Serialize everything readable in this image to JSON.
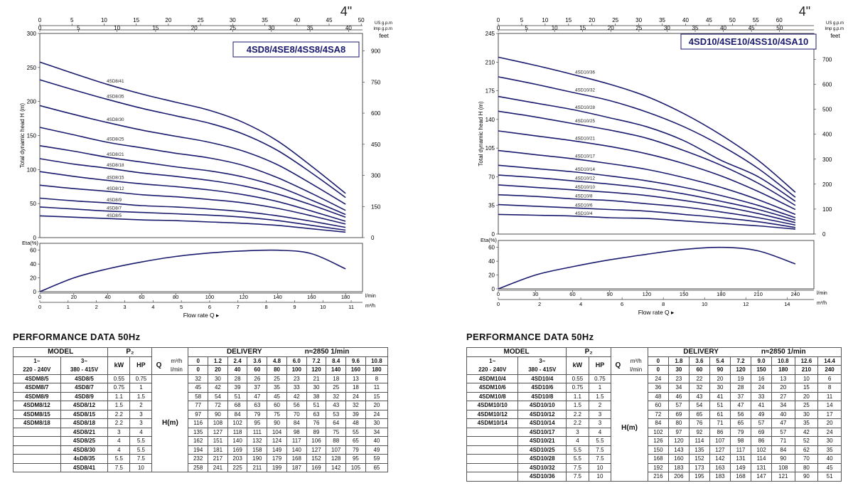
{
  "charts": [
    {
      "title": "4SD8/4SE8/4SS8/4SA8",
      "size_label": "4\"",
      "top_axes": {
        "us_label": "US g.p.m",
        "imp_label": "Imp g.p.m",
        "us_ticks": [
          "0",
          "5",
          "10",
          "15",
          "20",
          "25",
          "30",
          "35",
          "40",
          "45",
          "50"
        ],
        "imp_ticks": [
          "0",
          "5",
          "10",
          "15",
          "20",
          "25",
          "30",
          "35",
          "40"
        ]
      },
      "h_ylabel": "Total dynamic head H (m)",
      "feet_label": "feet",
      "feet_ticks": [
        "0",
        "150",
        "300",
        "450",
        "600",
        "750",
        "900"
      ],
      "h_ticks": [
        "0",
        "50",
        "100",
        "150",
        "200",
        "250",
        "300"
      ],
      "eta_label": "Eta(%)",
      "eta_ticks": [
        "0",
        "20",
        "40",
        "60"
      ],
      "lmin_ticks": [
        "0",
        "20",
        "40",
        "60",
        "80",
        "100",
        "120",
        "140",
        "160",
        "180"
      ],
      "lmin_unit": "l/min",
      "m3h_ticks": [
        "0",
        "1",
        "2",
        "3",
        "4",
        "5",
        "6",
        "7",
        "8",
        "9",
        "10",
        "11"
      ],
      "m3h_unit": "m³/h",
      "xlabel": "Flow rate Q"
    },
    {
      "title": "4SD10/4SE10/4SS10/4SA10",
      "size_label": "4\"",
      "top_axes": {
        "us_label": "US g.p.m",
        "imp_label": "Imp g.p.m",
        "us_ticks": [
          "0",
          "5",
          "10",
          "15",
          "20",
          "25",
          "30",
          "35",
          "40",
          "45",
          "50",
          "55",
          "60"
        ],
        "imp_ticks": [
          "0",
          "5",
          "10",
          "15",
          "20",
          "25",
          "30",
          "35",
          "40",
          "45",
          "50"
        ]
      },
      "h_ylabel": "Total dynamic head H (m)",
      "feet_label": "feet",
      "feet_ticks": [
        "0",
        "100",
        "200",
        "300",
        "400",
        "500",
        "600",
        "700"
      ],
      "h_ticks": [
        "0",
        "35",
        "70",
        "105",
        "140",
        "175",
        "210",
        "245"
      ],
      "eta_label": "Eta(%)",
      "eta_ticks": [
        "0",
        "20",
        "40",
        "60"
      ],
      "lmin_ticks": [
        "0",
        "30",
        "60",
        "90",
        "120",
        "150",
        "180",
        "210",
        "240"
      ],
      "lmin_unit": "l/min",
      "m3h_ticks": [
        "0",
        "2",
        "4",
        "6",
        "8",
        "10",
        "12",
        "14"
      ],
      "m3h_unit": "m³/h",
      "xlabel": "Flow rate Q"
    }
  ],
  "chart_data": [
    {
      "type": "line",
      "title": "4SD8/4SE8/4SS8/4SA8",
      "x_unit": "l/min",
      "xlim": [
        0,
        190
      ],
      "ylim": [
        0,
        300
      ],
      "ylabel": "Total dynamic head H (m)",
      "x": [
        0,
        20,
        40,
        60,
        80,
        100,
        120,
        140,
        160,
        180
      ],
      "series": [
        {
          "name": "4SD8/5",
          "values": [
            32,
            30,
            28,
            26,
            25,
            23,
            21,
            18,
            13,
            8
          ]
        },
        {
          "name": "4SD8/7",
          "values": [
            45,
            42,
            39,
            37,
            35,
            33,
            30,
            25,
            18,
            11
          ]
        },
        {
          "name": "4SD8/9",
          "values": [
            58,
            54,
            51,
            47,
            45,
            42,
            38,
            32,
            24,
            15
          ]
        },
        {
          "name": "4SD8/12",
          "values": [
            77,
            72,
            68,
            63,
            60,
            56,
            51,
            43,
            32,
            20
          ]
        },
        {
          "name": "4SD8/15",
          "values": [
            97,
            90,
            84,
            79,
            75,
            70,
            63,
            53,
            39,
            24
          ]
        },
        {
          "name": "4SD8/18",
          "values": [
            116,
            108,
            102,
            95,
            90,
            84,
            76,
            64,
            48,
            30
          ]
        },
        {
          "name": "4SD8/21",
          "values": [
            135,
            127,
            118,
            111,
            104,
            98,
            89,
            75,
            55,
            34
          ]
        },
        {
          "name": "4SD8/25",
          "values": [
            162,
            151,
            140,
            132,
            124,
            117,
            106,
            88,
            65,
            40
          ]
        },
        {
          "name": "4SD8/30",
          "values": [
            194,
            181,
            169,
            158,
            149,
            140,
            127,
            107,
            79,
            49
          ]
        },
        {
          "name": "4SD8/35",
          "values": [
            232,
            217,
            203,
            190,
            179,
            168,
            152,
            128,
            95,
            59
          ]
        },
        {
          "name": "4SD8/41",
          "values": [
            258,
            241,
            225,
            211,
            199,
            187,
            169,
            142,
            105,
            65
          ]
        }
      ],
      "eta": {
        "ylabel": "Eta(%)",
        "ylim": [
          0,
          70
        ],
        "x": [
          0,
          20,
          40,
          60,
          80,
          100,
          120,
          140,
          160,
          180
        ],
        "values": [
          0,
          20,
          33,
          43,
          51,
          56,
          59,
          60,
          55,
          33
        ]
      }
    },
    {
      "type": "line",
      "title": "4SD10/4SE10/4SS10/4SA10",
      "x_unit": "l/min",
      "xlim": [
        0,
        255
      ],
      "ylim": [
        0,
        245
      ],
      "ylabel": "Total dynamic head H (m)",
      "x": [
        0,
        30,
        60,
        90,
        120,
        150,
        180,
        210,
        240
      ],
      "series": [
        {
          "name": "4SD10/4",
          "values": [
            24,
            23,
            22,
            20,
            19,
            16,
            13,
            10,
            6
          ]
        },
        {
          "name": "4SD10/6",
          "values": [
            36,
            34,
            32,
            30,
            28,
            24,
            20,
            15,
            8
          ]
        },
        {
          "name": "4SD10/8",
          "values": [
            48,
            46,
            43,
            41,
            37,
            33,
            27,
            20,
            11
          ]
        },
        {
          "name": "4SD10/10",
          "values": [
            60,
            57,
            54,
            51,
            47,
            41,
            34,
            25,
            14
          ]
        },
        {
          "name": "4SD10/12",
          "values": [
            72,
            69,
            65,
            61,
            56,
            49,
            40,
            30,
            17
          ]
        },
        {
          "name": "4SD10/14",
          "values": [
            84,
            80,
            76,
            71,
            65,
            57,
            47,
            35,
            20
          ]
        },
        {
          "name": "4SD10/17",
          "values": [
            102,
            97,
            92,
            86,
            79,
            69,
            57,
            42,
            24
          ]
        },
        {
          "name": "4SD10/21",
          "values": [
            126,
            120,
            114,
            107,
            98,
            86,
            71,
            52,
            30
          ]
        },
        {
          "name": "4SD10/25",
          "values": [
            150,
            143,
            135,
            127,
            117,
            102,
            84,
            62,
            35
          ]
        },
        {
          "name": "4SD10/28",
          "values": [
            168,
            160,
            152,
            142,
            131,
            114,
            90,
            70,
            40
          ]
        },
        {
          "name": "4SD10/32",
          "values": [
            192,
            183,
            173,
            163,
            149,
            131,
            108,
            80,
            45
          ]
        },
        {
          "name": "4SD10/36",
          "values": [
            216,
            206,
            195,
            183,
            168,
            147,
            121,
            90,
            51
          ]
        }
      ],
      "eta": {
        "ylabel": "Eta(%)",
        "ylim": [
          0,
          70
        ],
        "x": [
          0,
          30,
          60,
          90,
          120,
          150,
          180,
          210,
          240
        ],
        "values": [
          0,
          20,
          32,
          42,
          50,
          57,
          60,
          55,
          36
        ]
      }
    }
  ],
  "tables": [
    {
      "heading": "PERFORMANCE  DATA   50Hz",
      "model_label": "MODEL",
      "p2_label": "P₂",
      "col_1ph": "1~",
      "col_1ph_v": "220 - 240V",
      "col_3ph": "3~",
      "col_3ph_v": "380 - 415V",
      "kw_label": "kW",
      "hp_label": "HP",
      "q_label": "Q",
      "q_unit1": "m³/h",
      "q_unit2": "l/min",
      "delivery_label": "DELIVERY",
      "speed_label": "n≈2850 1/min",
      "h_label": "H(m)",
      "m3h": [
        "0",
        "1.2",
        "2.4",
        "3.6",
        "4.8",
        "6.0",
        "7.2",
        "8.4",
        "9.6",
        "10.8"
      ],
      "lmin": [
        "0",
        "20",
        "40",
        "60",
        "80",
        "100",
        "120",
        "140",
        "160",
        "180"
      ],
      "rows": [
        {
          "m1": "4SDM8/5",
          "m3": "4SD8/5",
          "kw": "0.55",
          "hp": "0.75",
          "h": [
            "32",
            "30",
            "28",
            "26",
            "25",
            "23",
            "21",
            "18",
            "13",
            "8"
          ]
        },
        {
          "m1": "4SDM8/7",
          "m3": "4SD8/7",
          "kw": "0.75",
          "hp": "1",
          "h": [
            "45",
            "42",
            "39",
            "37",
            "35",
            "33",
            "30",
            "25",
            "18",
            "11"
          ]
        },
        {
          "m1": "4SDM8/9",
          "m3": "4SD8/9",
          "kw": "1.1",
          "hp": "1.5",
          "h": [
            "58",
            "54",
            "51",
            "47",
            "45",
            "42",
            "38",
            "32",
            "24",
            "15"
          ]
        },
        {
          "m1": "4SDM8/12",
          "m3": "4SD8/12",
          "kw": "1.5",
          "hp": "2",
          "h": [
            "77",
            "72",
            "68",
            "63",
            "60",
            "56",
            "51",
            "43",
            "32",
            "20"
          ]
        },
        {
          "m1": "4SDM8/15",
          "m3": "4SD8/15",
          "kw": "2.2",
          "hp": "3",
          "h": [
            "97",
            "90",
            "84",
            "79",
            "75",
            "70",
            "63",
            "53",
            "39",
            "24"
          ]
        },
        {
          "m1": "4SDM8/18",
          "m3": "4SD8/18",
          "kw": "2.2",
          "hp": "3",
          "h": [
            "116",
            "108",
            "102",
            "95",
            "90",
            "84",
            "76",
            "64",
            "48",
            "30"
          ]
        },
        {
          "m1": "",
          "m3": "4SD8/21",
          "kw": "3",
          "hp": "4",
          "h": [
            "135",
            "127",
            "118",
            "111",
            "104",
            "98",
            "89",
            "75",
            "55",
            "34"
          ]
        },
        {
          "m1": "",
          "m3": "4SD8/25",
          "kw": "4",
          "hp": "5.5",
          "h": [
            "162",
            "151",
            "140",
            "132",
            "124",
            "117",
            "106",
            "88",
            "65",
            "40"
          ]
        },
        {
          "m1": "",
          "m3": "4SD8/30",
          "kw": "4",
          "hp": "5.5",
          "h": [
            "194",
            "181",
            "169",
            "158",
            "149",
            "140",
            "127",
            "107",
            "79",
            "49"
          ]
        },
        {
          "m1": "",
          "m3": "4sD8/35",
          "kw": "5.5",
          "hp": "7.5",
          "h": [
            "232",
            "217",
            "203",
            "190",
            "179",
            "168",
            "152",
            "128",
            "95",
            "59"
          ]
        },
        {
          "m1": "",
          "m3": "4SD8/41",
          "kw": "7.5",
          "hp": "10",
          "h": [
            "258",
            "241",
            "225",
            "211",
            "199",
            "187",
            "169",
            "142",
            "105",
            "65"
          ]
        }
      ]
    },
    {
      "heading": "PERFORMANCE  DATA   50Hz",
      "model_label": "MODEL",
      "p2_label": "P₂",
      "col_1ph": "1~",
      "col_1ph_v": "220 - 240V",
      "col_3ph": "3~",
      "col_3ph_v": "380 - 415V",
      "kw_label": "kW",
      "hp_label": "HP",
      "q_label": "Q",
      "q_unit1": "m³/h",
      "q_unit2": "l/min",
      "delivery_label": "DELIVERY",
      "speed_label": "n≈2850 1/min",
      "h_label": "H(m)",
      "m3h": [
        "0",
        "1.8",
        "3.6",
        "5.4",
        "7.2",
        "9.0",
        "10.8",
        "12.6",
        "14.4"
      ],
      "lmin": [
        "0",
        "30",
        "60",
        "90",
        "120",
        "150",
        "180",
        "210",
        "240"
      ],
      "rows": [
        {
          "m1": "4SDM10/4",
          "m3": "4SD10/4",
          "kw": "0.55",
          "hp": "0.75",
          "h": [
            "24",
            "23",
            "22",
            "20",
            "19",
            "16",
            "13",
            "10",
            "6"
          ]
        },
        {
          "m1": "4SDM10/6",
          "m3": "4SD10/6",
          "kw": "0.75",
          "hp": "1",
          "h": [
            "36",
            "34",
            "32",
            "30",
            "28",
            "24",
            "20",
            "15",
            "8"
          ]
        },
        {
          "m1": "4SDM10/8",
          "m3": "4SD10/8",
          "kw": "1.1",
          "hp": "1.5",
          "h": [
            "48",
            "46",
            "43",
            "41",
            "37",
            "33",
            "27",
            "20",
            "11"
          ]
        },
        {
          "m1": "4SDM10/10",
          "m3": "4SD10/10",
          "kw": "1.5",
          "hp": "2",
          "h": [
            "60",
            "57",
            "54",
            "51",
            "47",
            "41",
            "34",
            "25",
            "14"
          ]
        },
        {
          "m1": "4SDM10/12",
          "m3": "4SD10/12",
          "kw": "2.2",
          "hp": "3",
          "h": [
            "72",
            "69",
            "65",
            "61",
            "56",
            "49",
            "40",
            "30",
            "17"
          ]
        },
        {
          "m1": "4SDM10/14",
          "m3": "4SD10/14",
          "kw": "2.2",
          "hp": "3",
          "h": [
            "84",
            "80",
            "76",
            "71",
            "65",
            "57",
            "47",
            "35",
            "20"
          ]
        },
        {
          "m1": "",
          "m3": "4SD10/17",
          "kw": "3",
          "hp": "4",
          "h": [
            "102",
            "97",
            "92",
            "86",
            "79",
            "69",
            "57",
            "42",
            "24"
          ]
        },
        {
          "m1": "",
          "m3": "4SD10/21",
          "kw": "4",
          "hp": "5.5",
          "h": [
            "126",
            "120",
            "114",
            "107",
            "98",
            "86",
            "71",
            "52",
            "30"
          ]
        },
        {
          "m1": "",
          "m3": "4SD10/25",
          "kw": "5.5",
          "hp": "7.5",
          "h": [
            "150",
            "143",
            "135",
            "127",
            "117",
            "102",
            "84",
            "62",
            "35"
          ]
        },
        {
          "m1": "",
          "m3": "4SD10/28",
          "kw": "5.5",
          "hp": "7.5",
          "h": [
            "168",
            "160",
            "152",
            "142",
            "131",
            "114",
            "90",
            "70",
            "40"
          ]
        },
        {
          "m1": "",
          "m3": "4SD10/32",
          "kw": "7.5",
          "hp": "10",
          "h": [
            "192",
            "183",
            "173",
            "163",
            "149",
            "131",
            "108",
            "80",
            "45"
          ]
        },
        {
          "m1": "",
          "m3": "4SD10/36",
          "kw": "7.5",
          "hp": "10",
          "h": [
            "216",
            "206",
            "195",
            "183",
            "168",
            "147",
            "121",
            "90",
            "51"
          ]
        }
      ]
    }
  ],
  "colors": {
    "curve": "#1a1a6e",
    "title_border": "#1a1a6e",
    "axis": "#333333"
  }
}
